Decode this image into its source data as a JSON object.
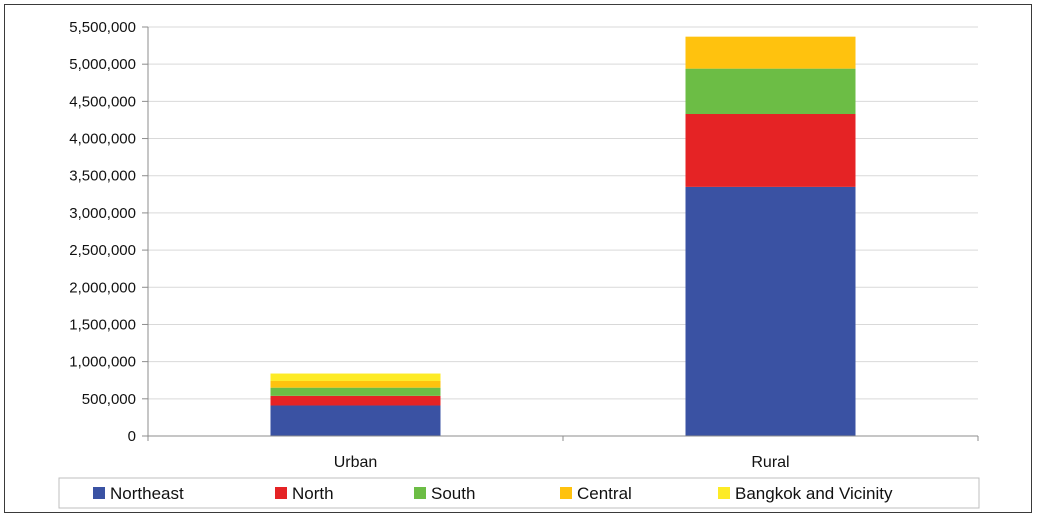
{
  "chart_data": {
    "type": "bar",
    "stacked": true,
    "categories": [
      "Urban",
      "Rural"
    ],
    "series": [
      {
        "name": "Northeast",
        "color": "#3a52a3",
        "values": [
          410000,
          3350000
        ]
      },
      {
        "name": "North",
        "color": "#e52325",
        "values": [
          130000,
          980000
        ]
      },
      {
        "name": "South",
        "color": "#6cbd45",
        "values": [
          110000,
          610000
        ]
      },
      {
        "name": "Central",
        "color": "#ffc20e",
        "values": [
          90000,
          430000
        ]
      },
      {
        "name": "Bangkok and Vicinity",
        "color": "#fdeb26",
        "values": [
          100000,
          0
        ]
      }
    ],
    "ylim": [
      0,
      5500000
    ],
    "yticks": [
      "0",
      "500,000",
      "1,000,000",
      "1,500,000",
      "2,000,000",
      "2,500,000",
      "3,000,000",
      "3,500,000",
      "4,000,000",
      "4,500,000",
      "5,000,000",
      "5,500,000"
    ],
    "grid": true,
    "legend": "bottom"
  }
}
